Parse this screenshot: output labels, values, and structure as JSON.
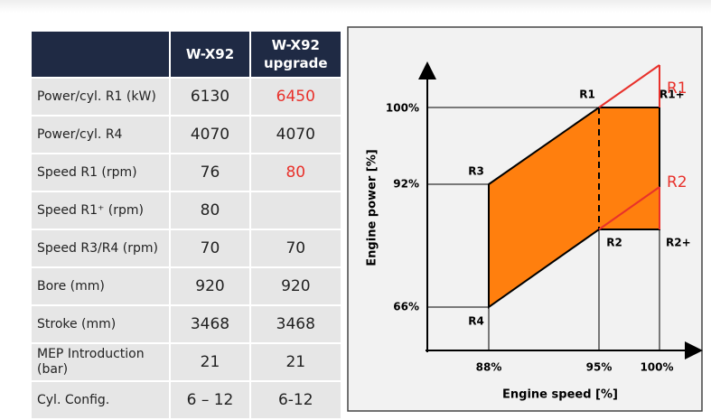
{
  "table": {
    "header": [
      "W-X92",
      "W-X92 upgrade"
    ],
    "rows": [
      [
        "Power/cyl. R1 (kW)",
        "6130",
        "6450"
      ],
      [
        "Power/cyl. R4",
        "4070",
        "4070"
      ],
      [
        "Speed R1 (rpm)",
        "76",
        "80"
      ],
      [
        "Speed R1⁺ (rpm)",
        "80"
      ],
      [
        "Speed R3/R4 (rpm)",
        "70",
        "70"
      ],
      [
        "Bore (mm)",
        "920",
        "920"
      ],
      [
        "Stroke (mm)",
        "3468",
        "3468"
      ],
      [
        "MEP Introduction (bar)",
        "21",
        "21"
      ],
      [
        "Cyl. Config.",
        "6 – 12",
        "6-12"
      ]
    ]
  },
  "diagram": {
    "x_axis_label": "Engine speed [%]",
    "y_axis_label": "Engine power [%]",
    "x_labels": [
      "88%",
      "95%",
      "100%"
    ],
    "y_labels": [
      "100%",
      "92%",
      "66%"
    ],
    "points": [
      "R1",
      "R1+",
      "R2",
      "R2+",
      "R3",
      "R4"
    ],
    "upgrade_points": [
      "R1",
      "R2"
    ]
  }
}
